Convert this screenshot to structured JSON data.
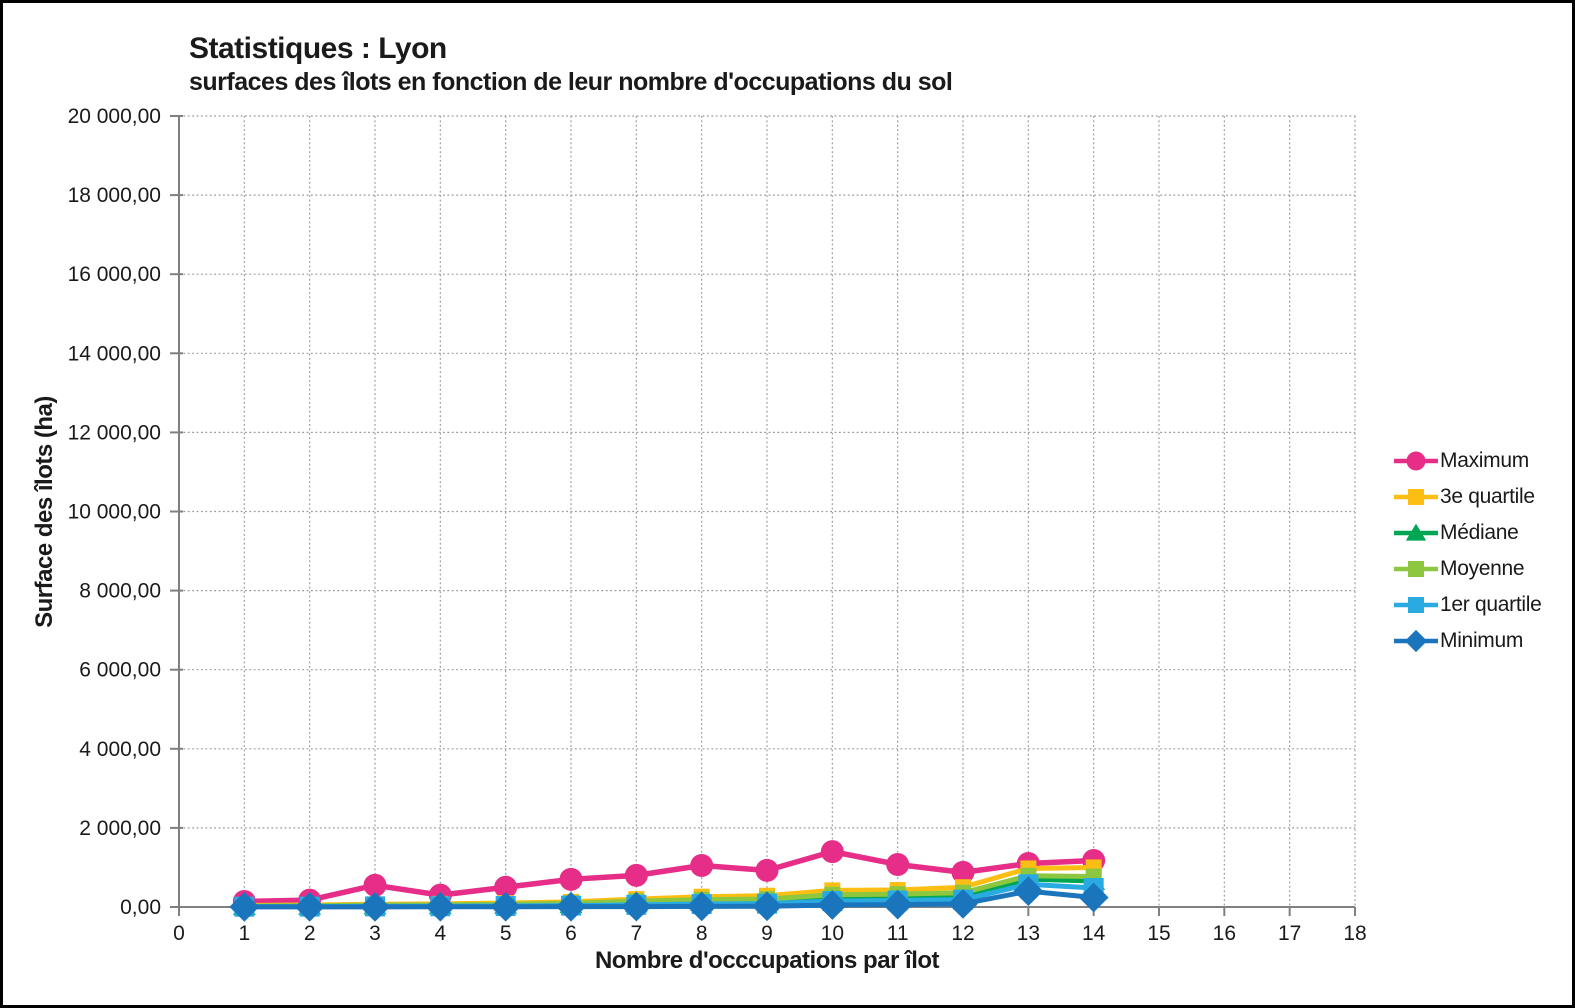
{
  "title": "Statistiques : Lyon",
  "subtitle": "surfaces des îlots en fonction de leur nombre d'occupations du sol",
  "chart_data": {
    "type": "line",
    "title": "Statistiques : Lyon",
    "subtitle": "surfaces des îlots en fonction de leur nombre d'occupations du sol",
    "xlabel": "Nombre d'occcupations par îlot",
    "ylabel": "Surface des îlots (ha)",
    "xlim": [
      0,
      18
    ],
    "ylim": [
      0,
      20000
    ],
    "grid": "dotted-both",
    "legend_position": "right",
    "x_tick_labels": [
      "0",
      "1",
      "2",
      "3",
      "4",
      "5",
      "6",
      "7",
      "8",
      "9",
      "10",
      "11",
      "12",
      "13",
      "14",
      "15",
      "16",
      "17",
      "18"
    ],
    "y_ticks": [
      {
        "value": 0,
        "label": "0,00"
      },
      {
        "value": 2000,
        "label": "2 000,00"
      },
      {
        "value": 4000,
        "label": "4 000,00"
      },
      {
        "value": 6000,
        "label": "6 000,00"
      },
      {
        "value": 8000,
        "label": "8 000,00"
      },
      {
        "value": 10000,
        "label": "10 000,00"
      },
      {
        "value": 12000,
        "label": "12 000,00"
      },
      {
        "value": 14000,
        "label": "14 000,00"
      },
      {
        "value": 16000,
        "label": "16 000,00"
      },
      {
        "value": 18000,
        "label": "18 000,00"
      },
      {
        "value": 20000,
        "label": "20 000,00"
      }
    ],
    "x": [
      1,
      2,
      3,
      4,
      5,
      6,
      7,
      8,
      9,
      10,
      11,
      12,
      13,
      14
    ],
    "series": [
      {
        "name": "Maximum",
        "color": "#E62D87",
        "marker": "circle",
        "values": [
          140,
          175,
          550,
          300,
          500,
          700,
          800,
          1050,
          925,
          1400,
          1075,
          875,
          1100,
          1175
        ]
      },
      {
        "name": "3e quartile",
        "color": "#FDBE14",
        "marker": "square",
        "values": [
          40,
          50,
          70,
          80,
          100,
          130,
          200,
          260,
          285,
          420,
          430,
          500,
          975,
          1000
        ]
      },
      {
        "name": "Médiane",
        "color": "#00A651",
        "marker": "triangle",
        "values": [
          15,
          20,
          30,
          35,
          45,
          60,
          95,
          125,
          135,
          200,
          215,
          250,
          700,
          650
        ]
      },
      {
        "name": "Moyenne",
        "color": "#8DC63F",
        "marker": "square",
        "values": [
          25,
          35,
          50,
          55,
          70,
          95,
          145,
          185,
          200,
          310,
          325,
          360,
          790,
          770
        ]
      },
      {
        "name": "1er quartile",
        "color": "#29ABE2",
        "marker": "square",
        "values": [
          8,
          10,
          15,
          18,
          25,
          35,
          55,
          75,
          85,
          150,
          165,
          185,
          575,
          480
        ]
      },
      {
        "name": "Minimum",
        "color": "#1B75BC",
        "marker": "diamond",
        "values": [
          3,
          3,
          4,
          5,
          6,
          8,
          10,
          15,
          20,
          50,
          60,
          80,
          400,
          240
        ]
      }
    ],
    "colors": {
      "axis": "#808080",
      "grid": "#999999",
      "text": "#1a1a1a"
    }
  }
}
